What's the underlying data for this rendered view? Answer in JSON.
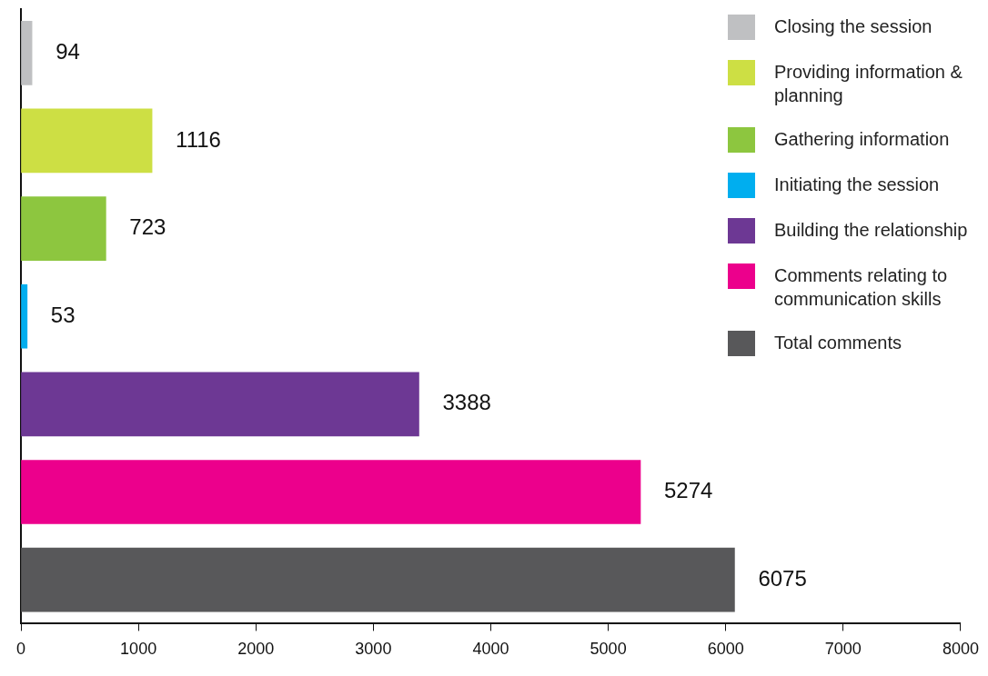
{
  "chart_data": {
    "type": "bar",
    "orientation": "horizontal",
    "categories": [
      null,
      null,
      null,
      null,
      null,
      null,
      null
    ],
    "series": [
      {
        "name": "Closing the session",
        "color": "#bfc0c2",
        "values": [
          94,
          null,
          null,
          null,
          null,
          null,
          null
        ]
      },
      {
        "name": "Providing information & planning",
        "color": "#cddf44",
        "values": [
          null,
          1116,
          null,
          null,
          null,
          null,
          null
        ]
      },
      {
        "name": "Gathering information",
        "color": "#8dc63f",
        "values": [
          null,
          null,
          723,
          null,
          null,
          null,
          null
        ]
      },
      {
        "name": "Initiating the session",
        "color": "#00aeef",
        "values": [
          null,
          null,
          null,
          53,
          null,
          null,
          null
        ]
      },
      {
        "name": "Building the relationship",
        "color": "#6d3894",
        "values": [
          null,
          null,
          null,
          null,
          3388,
          null,
          null
        ]
      },
      {
        "name": "Comments relating to communication skills",
        "color": "#ec008c",
        "values": [
          null,
          null,
          null,
          null,
          null,
          5274,
          null
        ]
      },
      {
        "name": "Total comments",
        "color": "#58585a",
        "values": [
          null,
          null,
          null,
          null,
          null,
          null,
          6075
        ]
      }
    ],
    "xlim": [
      0,
      8000
    ],
    "xticks": [
      0,
      1000,
      2000,
      3000,
      4000,
      5000,
      6000,
      7000,
      8000
    ],
    "data_labels": true,
    "legend": "top right"
  }
}
